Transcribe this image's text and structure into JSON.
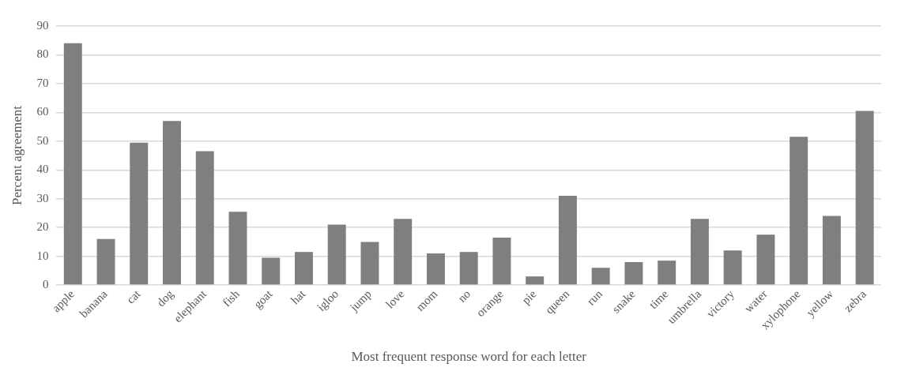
{
  "chart_data": {
    "type": "bar",
    "xlabel": "Most frequent response word for each letter",
    "ylabel": "Percent agreement",
    "categories": [
      "apple",
      "banana",
      "cat",
      "dog",
      "elephant",
      "fish",
      "goat",
      "hat",
      "igloo",
      "jump",
      "love",
      "mom",
      "no",
      "orange",
      "pie",
      "queen",
      "run",
      "snake",
      "time",
      "umbrella",
      "victory",
      "water",
      "xylophone",
      "yellow",
      "zebra"
    ],
    "values": [
      84,
      16,
      49.5,
      57,
      46.5,
      25.5,
      9.5,
      11.5,
      21,
      15,
      23,
      11,
      11.5,
      16.5,
      3,
      31,
      6,
      8,
      8.5,
      23,
      12,
      17.5,
      51.5,
      24,
      60.5
    ],
    "color": "#7f7f7f",
    "ylim": [
      0,
      90
    ],
    "yticks": [
      0,
      10,
      20,
      30,
      40,
      50,
      60,
      70,
      80,
      90
    ],
    "grid": "y",
    "legend": false
  }
}
